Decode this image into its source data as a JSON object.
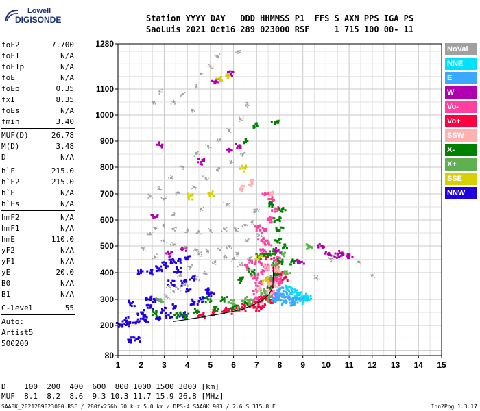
{
  "logo": {
    "brand": "Lowell",
    "product": "DIGISONDE"
  },
  "header": {
    "line1": "Station YYYY DAY   DDD HHMMSS P1  FFS S AXN PPS IGA PS",
    "line2": "SaoLuis 2021 Oct16 289 023000 RSF     1 715 100 00- 11"
  },
  "params": {
    "group1": [
      {
        "name": "foF2",
        "value": "7.700"
      },
      {
        "name": "foF1",
        "value": "N/A"
      },
      {
        "name": "foF1p",
        "value": "N/A"
      },
      {
        "name": "foE",
        "value": "N/A"
      },
      {
        "name": "foEp",
        "value": "0.35"
      },
      {
        "name": "fxI",
        "value": "8.35"
      },
      {
        "name": "foEs",
        "value": "N/A"
      },
      {
        "name": "fmin",
        "value": "3.40"
      }
    ],
    "group2": [
      {
        "name": "MUF(D)",
        "value": "26.78"
      },
      {
        "name": "M(D)",
        "value": "3.48"
      },
      {
        "name": "D",
        "value": "N/A"
      }
    ],
    "group3": [
      {
        "name": "h`F",
        "value": "215.0"
      },
      {
        "name": "h`F2",
        "value": "215.0"
      },
      {
        "name": "h`E",
        "value": "N/A"
      },
      {
        "name": "h`Es",
        "value": "N/A"
      }
    ],
    "group4": [
      {
        "name": "hmF2",
        "value": "N/A"
      },
      {
        "name": "hmF1",
        "value": "N/A"
      },
      {
        "name": "hmE",
        "value": "110.0"
      },
      {
        "name": "yF2",
        "value": "N/A"
      },
      {
        "name": "yF1",
        "value": "N/A"
      },
      {
        "name": "yE",
        "value": "20.0"
      },
      {
        "name": "B0",
        "value": "N/A"
      },
      {
        "name": "B1",
        "value": "N/A"
      }
    ],
    "group5": [
      {
        "name": "C-level",
        "value": "55"
      }
    ],
    "auto_label": "Auto:",
    "artist": "Artist5",
    "artist_version": "500200"
  },
  "legend": [
    {
      "label": "NoVal",
      "color": "#a0a0a0"
    },
    {
      "label": "NNE",
      "color": "#00e0ff"
    },
    {
      "label": "E",
      "color": "#3aa8ff"
    },
    {
      "label": "W",
      "color": "#b000b0"
    },
    {
      "label": "Vo-",
      "color": "#ff40a0"
    },
    {
      "label": "Vo+",
      "color": "#ff0040"
    },
    {
      "label": "SSW",
      "color": "#ffb0b0"
    },
    {
      "label": "X-",
      "color": "#008000"
    },
    {
      "label": "X+",
      "color": "#60b050"
    },
    {
      "label": "SSE",
      "color": "#d8d000"
    },
    {
      "label": "NNW",
      "color": "#2000e0"
    }
  ],
  "muf_table": {
    "d_label": "D",
    "muf_label": "MUF",
    "d_values": [
      "100",
      "200",
      "400",
      "600",
      "800",
      "1000",
      "1500",
      "3000"
    ],
    "muf_values": [
      "8.1",
      "8.2",
      "8.6",
      "9.3",
      "10.3",
      "11.7",
      "15.9",
      "26.8"
    ],
    "d_unit": "[km]",
    "muf_unit": "[MHz]"
  },
  "footer": {
    "left": "SAA0K_2021289023000.RSF / 280fx256h 50 kHz 5.0 km / DPS-4 SAA0K 903 / 2.6 S 315.8 E",
    "right": "Ion2Png 1.3.17"
  },
  "chart_data": {
    "type": "scatter",
    "xlim": [
      1,
      15
    ],
    "ylim": [
      80,
      1280
    ],
    "x_ticks": [
      "1",
      "2",
      "3",
      "4",
      "5",
      "6",
      "7",
      "8",
      "9",
      "10",
      "11",
      "12",
      "13",
      "14",
      "15"
    ],
    "y_ticks": [
      {
        "label": "80",
        "value": 80
      },
      {
        "label": "200",
        "value": 200
      },
      {
        "label": "300",
        "value": 300
      },
      {
        "label": "400",
        "value": 400
      },
      {
        "label": "500",
        "value": 500
      },
      {
        "label": "600",
        "value": 600
      },
      {
        "label": "700",
        "value": 700
      },
      {
        "label": "800",
        "value": 800
      },
      {
        "label": "900",
        "value": 900
      },
      {
        "label": "1000",
        "value": 1000
      },
      {
        "label": "1100",
        "value": 1100
      },
      {
        "label": "1280",
        "value": 1280
      }
    ],
    "grid": true,
    "trace": {
      "name": "F2 trace",
      "color": "#000000",
      "points": [
        [
          3.4,
          215
        ],
        [
          4.5,
          230
        ],
        [
          5.5,
          245
        ],
        [
          6.3,
          260
        ],
        [
          6.9,
          280
        ],
        [
          7.3,
          300
        ],
        [
          7.55,
          320
        ],
        [
          7.7,
          345
        ],
        [
          7.72,
          400
        ],
        [
          7.75,
          460
        ]
      ]
    },
    "clusters": [
      {
        "legend": "NNW",
        "points": [
          [
            1.1,
            200
          ],
          [
            1.4,
            205
          ],
          [
            1.8,
            215
          ],
          [
            2.2,
            222
          ],
          [
            2.7,
            228
          ],
          [
            3.2,
            238
          ],
          [
            2.0,
            250
          ],
          [
            2.4,
            268
          ],
          [
            1.6,
            285
          ],
          [
            2.3,
            300
          ],
          [
            1.3,
            220
          ],
          [
            1.5,
            142
          ],
          [
            1.8,
            146
          ],
          [
            3.0,
            258
          ],
          [
            3.8,
            240
          ],
          [
            4.3,
            290
          ],
          [
            4.0,
            330
          ],
          [
            3.8,
            360
          ],
          [
            4.2,
            380
          ],
          [
            3.6,
            410
          ],
          [
            4.6,
            300
          ],
          [
            5.0,
            320
          ],
          [
            4.8,
            335
          ],
          [
            3.3,
            360
          ],
          [
            2.0,
            405
          ],
          [
            2.4,
            400
          ],
          [
            2.8,
            416
          ],
          [
            3.0,
            430
          ],
          [
            3.3,
            440
          ],
          [
            3.6,
            445
          ],
          [
            4.0,
            455
          ],
          [
            2.6,
            298
          ],
          [
            3.5,
            275
          ],
          [
            2.1,
            232
          ]
        ]
      },
      {
        "legend": "Vo+",
        "points": [
          [
            4.6,
            240
          ],
          [
            5.1,
            250
          ],
          [
            5.6,
            258
          ],
          [
            6.1,
            268
          ],
          [
            6.5,
            275
          ],
          [
            6.8,
            282
          ],
          [
            7.0,
            290
          ],
          [
            7.2,
            300
          ],
          [
            7.4,
            310
          ],
          [
            7.0,
            265
          ],
          [
            7.3,
            272
          ],
          [
            7.6,
            288
          ],
          [
            6.4,
            262
          ],
          [
            5.8,
            255
          ],
          [
            7.9,
            430
          ],
          [
            8.0,
            400
          ],
          [
            8.2,
            380
          ],
          [
            7.5,
            460
          ]
        ]
      },
      {
        "legend": "Vo-",
        "points": [
          [
            6.9,
            300
          ],
          [
            7.0,
            330
          ],
          [
            7.1,
            360
          ],
          [
            7.2,
            400
          ],
          [
            7.1,
            440
          ],
          [
            7.3,
            480
          ],
          [
            7.4,
            420
          ],
          [
            7.5,
            380
          ],
          [
            7.6,
            340
          ],
          [
            7.7,
            370
          ],
          [
            7.8,
            410
          ],
          [
            7.9,
            450
          ],
          [
            7.5,
            510
          ],
          [
            7.3,
            560
          ],
          [
            7.0,
            570
          ],
          [
            7.6,
            600
          ],
          [
            7.8,
            640
          ],
          [
            7.6,
            680
          ],
          [
            7.4,
            700
          ],
          [
            6.8,
            440
          ],
          [
            6.6,
            420
          ],
          [
            7.9,
            380
          ],
          [
            8.0,
            360
          ],
          [
            7.2,
            520
          ],
          [
            7.8,
            320
          ],
          [
            6.9,
            380
          ]
        ]
      },
      {
        "legend": "E",
        "points": [
          [
            7.7,
            300
          ],
          [
            7.9,
            310
          ],
          [
            8.1,
            320
          ],
          [
            8.3,
            310
          ],
          [
            8.5,
            302
          ],
          [
            8.7,
            298
          ],
          [
            8.9,
            306
          ],
          [
            9.1,
            300
          ],
          [
            8.0,
            335
          ],
          [
            8.4,
            330
          ],
          [
            8.2,
            290
          ],
          [
            8.6,
            285
          ],
          [
            7.9,
            295
          ]
        ]
      },
      {
        "legend": "NNE",
        "points": [
          [
            8.8,
            320
          ],
          [
            9.0,
            310
          ],
          [
            9.2,
            305
          ],
          [
            8.4,
            345
          ],
          [
            9.0,
            290
          ],
          [
            8.6,
            326
          ]
        ]
      },
      {
        "legend": "X-",
        "points": [
          [
            3.6,
            240
          ],
          [
            4.4,
            255
          ],
          [
            5.2,
            262
          ],
          [
            6.0,
            270
          ],
          [
            6.6,
            282
          ],
          [
            7.6,
            350
          ],
          [
            7.8,
            390
          ],
          [
            8.0,
            440
          ],
          [
            7.7,
            480
          ],
          [
            7.9,
            520
          ],
          [
            8.0,
            560
          ],
          [
            7.9,
            600
          ],
          [
            8.1,
            640
          ],
          [
            7.6,
            660
          ],
          [
            6.8,
            405
          ],
          [
            6.3,
            372
          ],
          [
            6.6,
            900
          ],
          [
            6.9,
            960
          ],
          [
            7.8,
            970
          ],
          [
            3.9,
            235
          ],
          [
            2.6,
            245
          ],
          [
            4.9,
            300
          ],
          [
            5.6,
            300
          ],
          [
            7.1,
            462
          ],
          [
            8.2,
            495
          ],
          [
            8.5,
            440
          ],
          [
            7.4,
            470
          ]
        ]
      },
      {
        "legend": "X+",
        "points": [
          [
            6.2,
            265
          ],
          [
            6.7,
            290
          ],
          [
            7.3,
            330
          ],
          [
            7.6,
            380
          ],
          [
            7.8,
            430
          ],
          [
            8.1,
            470
          ],
          [
            7.5,
            300
          ],
          [
            8.3,
            400
          ],
          [
            5.9,
            285
          ],
          [
            6.5,
            300
          ],
          [
            2.8,
            298
          ],
          [
            9.3,
            500
          ]
        ]
      },
      {
        "legend": "W",
        "points": [
          [
            10.1,
            470
          ],
          [
            10.5,
            465
          ],
          [
            11.0,
            460
          ],
          [
            10.7,
            470
          ],
          [
            9.8,
            500
          ],
          [
            8.9,
            440
          ],
          [
            7.9,
            480
          ],
          [
            6.2,
            880
          ],
          [
            5.8,
            860
          ],
          [
            4.6,
            820
          ],
          [
            5.2,
            1130
          ],
          [
            5.9,
            1160
          ],
          [
            3.8,
            490
          ],
          [
            2.6,
            610
          ],
          [
            2.8,
            885
          ],
          [
            3.2,
            470
          ]
        ]
      },
      {
        "legend": "SSW",
        "points": [
          [
            7.8,
            355
          ],
          [
            7.6,
            330
          ],
          [
            7.9,
            410
          ],
          [
            7.1,
            340
          ],
          [
            6.8,
            740
          ],
          [
            6.4,
            720
          ],
          [
            7.7,
            700
          ],
          [
            7.6,
            360
          ],
          [
            7.5,
            420
          ]
        ]
      },
      {
        "legend": "SSE",
        "points": [
          [
            5.7,
            1155
          ],
          [
            5.4,
            1140
          ],
          [
            4.1,
            690
          ],
          [
            5.0,
            700
          ],
          [
            6.4,
            795
          ],
          [
            7.4,
            370
          ],
          [
            7.1,
            460
          ]
        ]
      },
      {
        "legend": "NoVal",
        "points": [
          [
            2.5,
            1050
          ],
          [
            2.8,
            1090
          ],
          [
            3.4,
            1050
          ],
          [
            3.8,
            1080
          ],
          [
            4.2,
            1020
          ],
          [
            4.6,
            1160
          ],
          [
            4.4,
            1110
          ],
          [
            5.0,
            1190
          ],
          [
            5.3,
            1230
          ],
          [
            6.2,
            1250
          ],
          [
            2.4,
            690
          ],
          [
            2.8,
            720
          ],
          [
            3.3,
            760
          ],
          [
            3.8,
            800
          ],
          [
            4.4,
            850
          ],
          [
            4.9,
            880
          ],
          [
            5.4,
            905
          ],
          [
            5.8,
            940
          ],
          [
            6.3,
            985
          ],
          [
            6.6,
            1040
          ],
          [
            3.0,
            680
          ],
          [
            3.6,
            705
          ],
          [
            4.3,
            725
          ],
          [
            4.8,
            760
          ],
          [
            5.3,
            790
          ],
          [
            5.9,
            820
          ],
          [
            6.4,
            850
          ],
          [
            2.6,
            570
          ],
          [
            3.0,
            575
          ],
          [
            3.4,
            565
          ],
          [
            4.0,
            560
          ],
          [
            4.5,
            555
          ],
          [
            5.0,
            560
          ],
          [
            5.6,
            565
          ],
          [
            6.1,
            560
          ],
          [
            6.5,
            580
          ],
          [
            6.8,
            590
          ],
          [
            7.0,
            640
          ],
          [
            3.0,
            520
          ],
          [
            3.4,
            505
          ],
          [
            3.9,
            495
          ],
          [
            4.4,
            485
          ],
          [
            4.9,
            480
          ],
          [
            5.4,
            485
          ],
          [
            5.8,
            500
          ],
          [
            6.2,
            470
          ],
          [
            6.7,
            455
          ],
          [
            3.2,
            350
          ],
          [
            3.6,
            340
          ],
          [
            3.9,
            355
          ],
          [
            4.4,
            375
          ],
          [
            4.8,
            395
          ],
          [
            5.2,
            440
          ],
          [
            5.6,
            460
          ],
          [
            6.0,
            450
          ],
          [
            6.3,
            430
          ],
          [
            6.7,
            410
          ],
          [
            3.1,
            310
          ],
          [
            3.4,
            330
          ],
          [
            3.7,
            390
          ],
          [
            4.1,
            420
          ],
          [
            4.5,
            470
          ],
          [
            2.4,
            545
          ],
          [
            3.4,
            620
          ],
          [
            4.6,
            640
          ],
          [
            5.7,
            660
          ],
          [
            6.9,
            630
          ],
          [
            6.6,
            520
          ],
          [
            7.1,
            540
          ],
          [
            2.1,
            490
          ],
          [
            2.6,
            460
          ],
          [
            9.6,
            380
          ],
          [
            10.2,
            450
          ],
          [
            11.4,
            440
          ],
          [
            12.0,
            390
          ]
        ]
      }
    ]
  }
}
